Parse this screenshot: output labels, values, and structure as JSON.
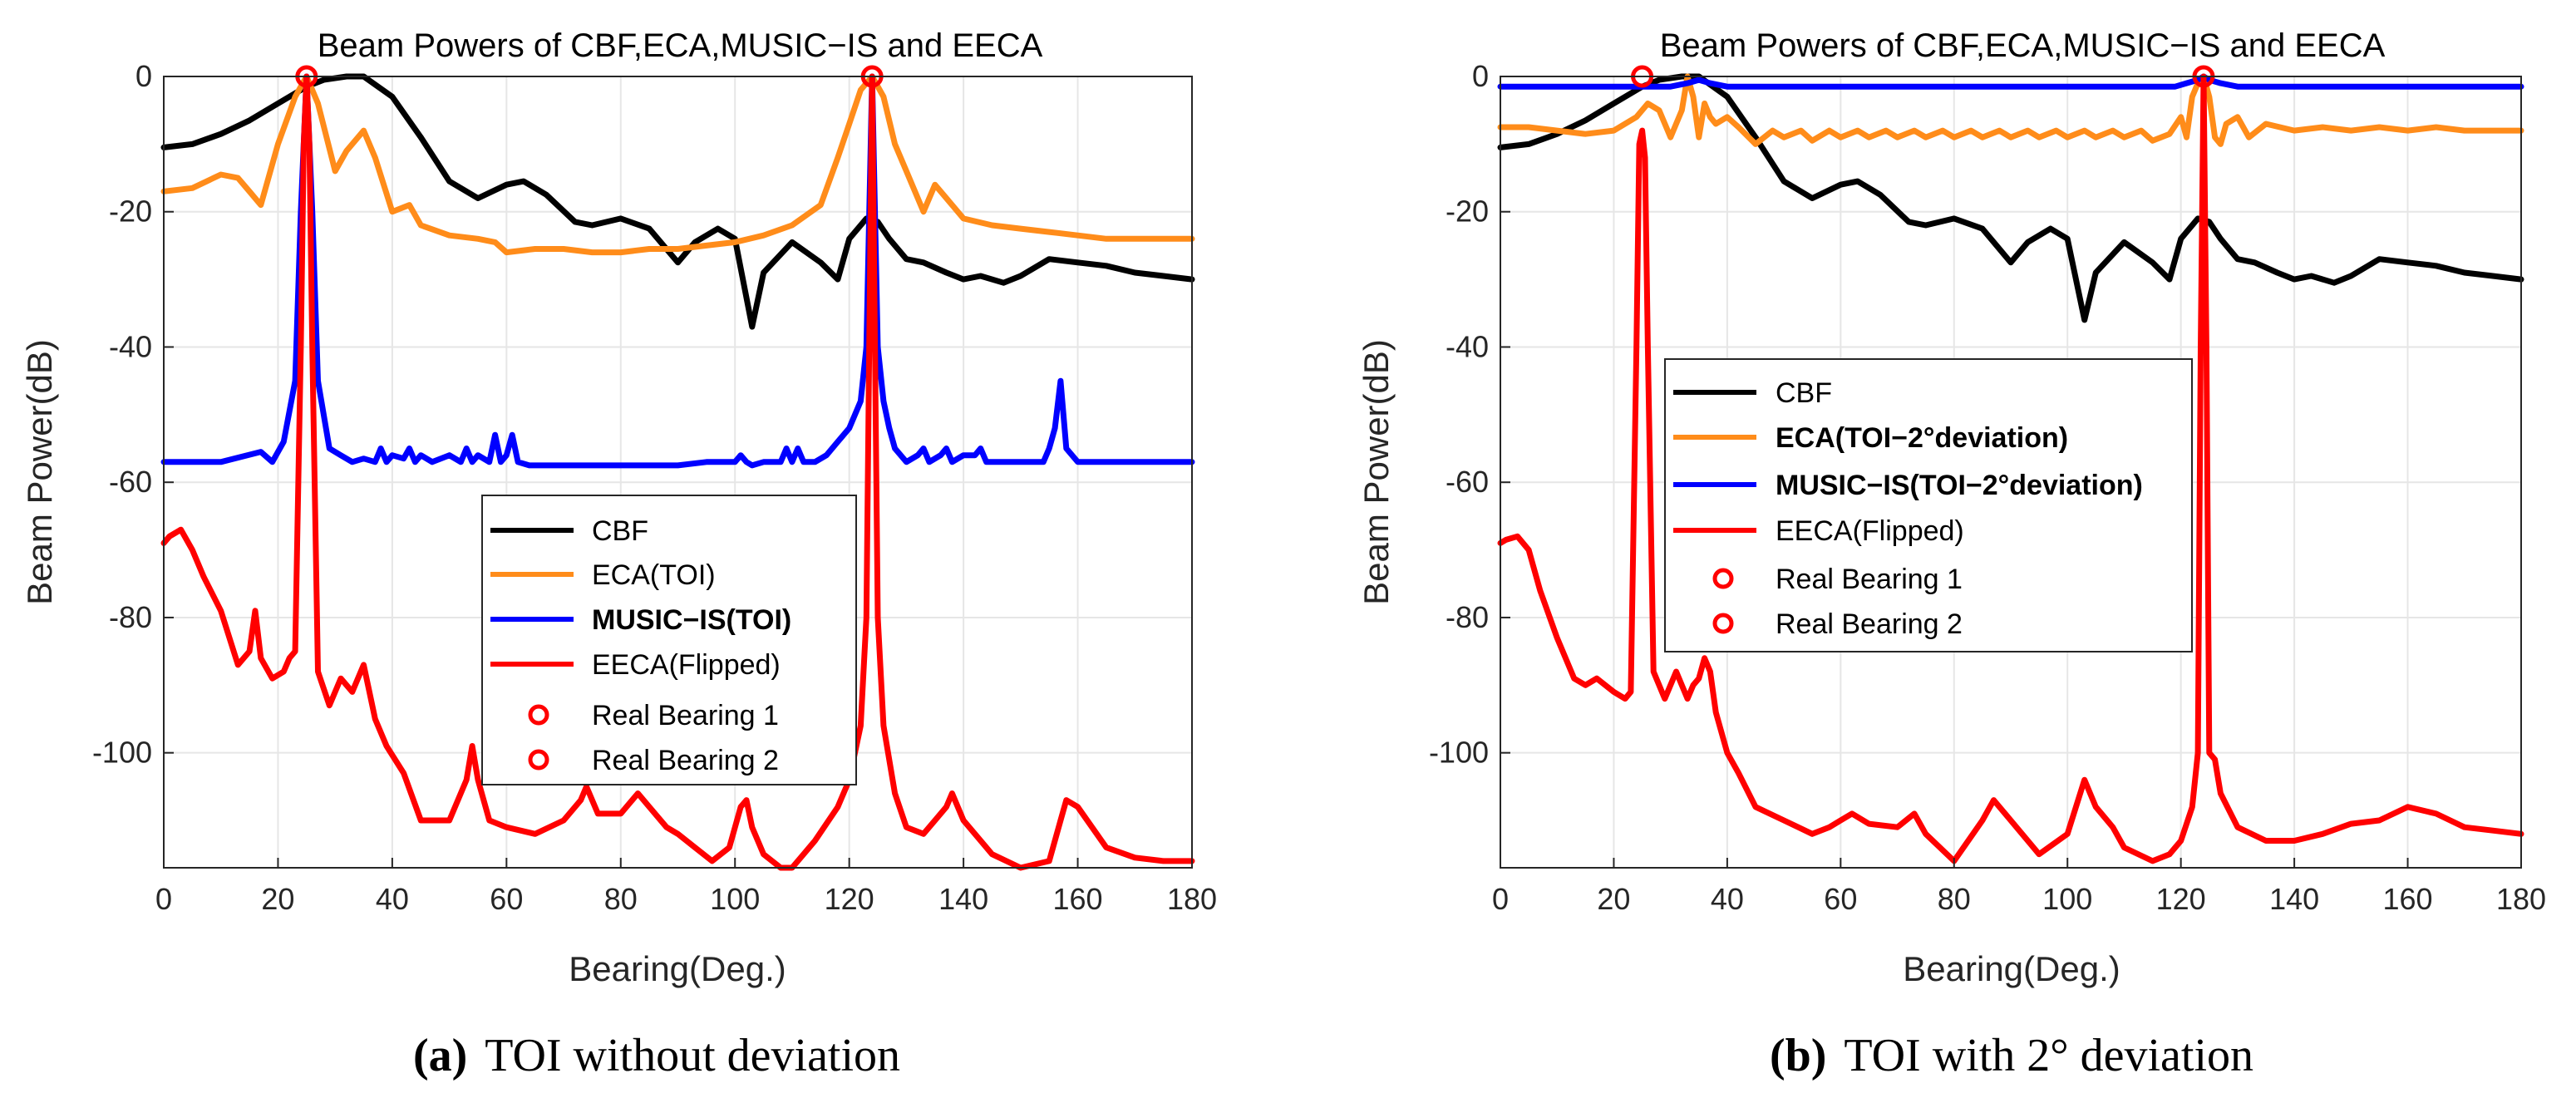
{
  "colors": {
    "cbf": "#000000",
    "eca": "#ff8c1a",
    "music": "#0000ff",
    "eeca": "#ff0000",
    "marker": "#ff0000",
    "grid": "#e6e6e6",
    "axis": "#262626"
  },
  "captions": [
    {
      "label": "(a)",
      "text": "TOI without deviation"
    },
    {
      "label": "(b)",
      "text": "TOI with 2° deviation"
    }
  ],
  "chart_data": [
    {
      "type": "line",
      "title": "Beam Powers of CBF,ECA,MUSIC−IS and EECA",
      "xlabel": "Bearing(Deg.)",
      "ylabel": "Beam Power(dB)",
      "xlim": [
        0,
        180
      ],
      "ylim": [
        -117,
        0
      ],
      "xticks": [
        "0",
        "20",
        "40",
        "60",
        "80",
        "100",
        "120",
        "140",
        "160",
        "180"
      ],
      "yticks": [
        "0",
        "-20",
        "-40",
        "-60",
        "-80",
        "-100"
      ],
      "grid": true,
      "legend_position": "center",
      "legend": [
        "CBF",
        "ECA(TOI)",
        "MUSIC−IS(TOI)",
        "EECA(Flipped)",
        "Real Bearing 1",
        "Real Bearing 2"
      ],
      "series": [
        {
          "name": "CBF",
          "x": [
            0,
            5,
            10,
            15,
            20,
            25,
            28,
            32,
            35,
            40,
            45,
            50,
            55,
            60,
            63,
            67,
            72,
            75,
            80,
            85,
            90,
            93,
            97,
            100,
            103,
            105,
            110,
            115,
            118,
            120,
            123,
            125,
            127,
            130,
            133,
            137,
            140,
            143,
            147,
            150,
            155,
            160,
            165,
            170,
            175,
            180
          ],
          "y": [
            -10.5,
            -10,
            -8.5,
            -6.5,
            -4,
            -1.5,
            -0.5,
            0,
            0,
            -3,
            -9,
            -15.5,
            -18,
            -16,
            -15.5,
            -17.5,
            -21.5,
            -22,
            -21,
            -22.5,
            -27.5,
            -24.5,
            -22.5,
            -24,
            -37,
            -29,
            -24.5,
            -27.5,
            -30,
            -24,
            -21,
            -21.5,
            -24,
            -27,
            -27.5,
            -29,
            -30,
            -29.5,
            -30.5,
            -29.5,
            -27,
            -27.5,
            -28,
            -29,
            -29.5,
            -30
          ]
        },
        {
          "name": "ECA(TOI)",
          "x": [
            0,
            5,
            10,
            13,
            15,
            17,
            20,
            23,
            25,
            27,
            30,
            32,
            35,
            37,
            40,
            43,
            45,
            50,
            55,
            58,
            60,
            65,
            70,
            75,
            80,
            85,
            90,
            95,
            100,
            105,
            110,
            115,
            118,
            120,
            122,
            124,
            126,
            128,
            130,
            133,
            135,
            138,
            140,
            145,
            150,
            155,
            160,
            165,
            170,
            175,
            180
          ],
          "y": [
            -17,
            -16.5,
            -14.5,
            -15,
            -17,
            -19,
            -10,
            -3,
            0,
            -4,
            -14,
            -11,
            -8,
            -12,
            -20,
            -19,
            -22,
            -23.5,
            -24,
            -24.5,
            -26,
            -25.5,
            -25.5,
            -26,
            -26,
            -25.5,
            -25.5,
            -25,
            -24.5,
            -23.5,
            -22,
            -19,
            -12,
            -7,
            -2,
            0,
            -3,
            -10,
            -14,
            -20,
            -16,
            -19,
            -21,
            -22,
            -22.5,
            -23,
            -23.5,
            -24,
            -24,
            -24,
            -24
          ]
        },
        {
          "name": "MUSIC−IS(TOI)",
          "x": [
            0,
            10,
            17,
            19,
            21,
            23,
            24,
            25,
            26,
            27,
            29,
            31,
            33,
            35,
            37,
            38,
            39,
            40,
            42,
            43,
            44,
            45,
            47,
            50,
            52,
            53,
            54,
            55,
            57,
            58,
            59,
            60,
            61,
            62,
            64,
            66,
            70,
            80,
            90,
            95,
            100,
            101,
            102,
            103,
            105,
            108,
            109,
            110,
            111,
            112,
            114,
            116,
            118,
            120,
            122,
            123,
            124,
            125,
            126,
            127,
            128,
            130,
            132,
            133,
            134,
            136,
            137,
            138,
            140,
            142,
            143,
            144,
            146,
            150,
            154,
            155,
            156,
            157,
            158,
            160,
            170,
            180
          ],
          "y": [
            -57,
            -57,
            -55.5,
            -57,
            -54,
            -45,
            -20,
            0,
            -20,
            -45,
            -55,
            -56,
            -57,
            -56.5,
            -57,
            -55,
            -57,
            -56,
            -56.5,
            -55,
            -57,
            -56,
            -57,
            -56,
            -57,
            -55,
            -57,
            -56,
            -57,
            -53,
            -57,
            -56,
            -53,
            -57,
            -57.5,
            -57.5,
            -57.5,
            -57.5,
            -57.5,
            -57,
            -57,
            -56,
            -57,
            -57.5,
            -57,
            -57,
            -55,
            -57,
            -55,
            -57,
            -57,
            -56,
            -54,
            -52,
            -48,
            -40,
            0,
            -40,
            -48,
            -52,
            -55,
            -57,
            -56,
            -55,
            -57,
            -56,
            -55,
            -57,
            -56,
            -56,
            -55,
            -57,
            -57,
            -57,
            -57,
            -55,
            -52,
            -45,
            -55,
            -57,
            -57,
            -57
          ]
        },
        {
          "name": "EECA(Flipped)",
          "x": [
            0,
            1,
            3,
            5,
            7,
            10,
            13,
            15,
            16,
            17,
            19,
            21,
            22,
            23,
            24,
            24.5,
            25,
            25.5,
            26,
            27,
            29,
            31,
            33,
            35,
            36,
            37,
            39,
            42,
            45,
            50,
            53,
            54,
            55,
            57,
            60,
            65,
            70,
            73,
            74,
            76,
            80,
            83,
            85,
            88,
            90,
            93,
            96,
            99,
            101,
            102,
            103,
            105,
            108,
            110,
            112,
            114,
            118,
            120,
            122,
            123,
            123.5,
            124,
            124.5,
            125,
            126,
            128,
            130,
            133,
            135,
            137,
            138,
            140,
            145,
            150,
            155,
            157,
            158,
            160,
            165,
            170,
            175,
            180
          ],
          "y": [
            -69,
            -68,
            -67,
            -70,
            -74,
            -79,
            -87,
            -85,
            -79,
            -86,
            -89,
            -88,
            -86,
            -85,
            -40,
            -10,
            0,
            -10,
            -40,
            -88,
            -93,
            -89,
            -91,
            -87,
            -91,
            -95,
            -99,
            -103,
            -110,
            -110,
            -104,
            -99,
            -104,
            -110,
            -111,
            -112,
            -110,
            -107,
            -105,
            -109,
            -109,
            -106,
            -108,
            -111,
            -112,
            -114,
            -116,
            -114,
            -108,
            -107,
            -111,
            -115,
            -117,
            -117,
            -115,
            -113,
            -108,
            -104,
            -96,
            -80,
            -40,
            0,
            -40,
            -80,
            -96,
            -106,
            -111,
            -112,
            -110,
            -108,
            -106,
            -110,
            -115,
            -117,
            -116,
            -110,
            -107,
            -108,
            -114,
            -115.5,
            -116,
            -116
          ]
        }
      ],
      "markers": [
        {
          "name": "Real Bearing 1",
          "x": 25,
          "y": 0
        },
        {
          "name": "Real Bearing 2",
          "x": 124,
          "y": 0
        }
      ]
    },
    {
      "type": "line",
      "title": "Beam Powers of CBF,ECA,MUSIC−IS and EECA",
      "xlabel": "Bearing(Deg.)",
      "ylabel": "Beam Power(dB)",
      "xlim": [
        0,
        180
      ],
      "ylim": [
        -117,
        0
      ],
      "xticks": [
        "0",
        "20",
        "40",
        "60",
        "80",
        "100",
        "120",
        "140",
        "160",
        "180"
      ],
      "yticks": [
        "0",
        "-20",
        "-40",
        "-60",
        "-80",
        "-100"
      ],
      "grid": true,
      "legend_position": "upper-left",
      "legend": [
        "CBF",
        "ECA(TOI−2°deviation)",
        "MUSIC−IS(TOI−2°deviation)",
        "EECA(Flipped)",
        "Real Bearing 1",
        "Real Bearing 2"
      ],
      "series": [
        {
          "name": "CBF",
          "x": [
            0,
            5,
            10,
            15,
            20,
            25,
            28,
            32,
            35,
            40,
            45,
            50,
            55,
            60,
            63,
            67,
            72,
            75,
            80,
            85,
            90,
            93,
            97,
            100,
            103,
            105,
            110,
            115,
            118,
            120,
            123,
            125,
            127,
            130,
            133,
            137,
            140,
            143,
            147,
            150,
            155,
            160,
            165,
            170,
            175,
            180
          ],
          "y": [
            -10.5,
            -10,
            -8.5,
            -6.5,
            -4,
            -1.5,
            -0.5,
            0,
            0,
            -3,
            -9,
            -15.5,
            -18,
            -16,
            -15.5,
            -17.5,
            -21.5,
            -22,
            -21,
            -22.5,
            -27.5,
            -24.5,
            -22.5,
            -24,
            -36,
            -29,
            -24.5,
            -27.5,
            -30,
            -24,
            -21,
            -21.5,
            -24,
            -27,
            -27.5,
            -29,
            -30,
            -29.5,
            -30.5,
            -29.5,
            -27,
            -27.5,
            -28,
            -29,
            -29.5,
            -30
          ]
        },
        {
          "name": "ECA(TOI−2°deviation)",
          "x": [
            0,
            5,
            10,
            15,
            20,
            24,
            26,
            28,
            30,
            32,
            33,
            34,
            35,
            36,
            37,
            38,
            40,
            42,
            45,
            48,
            50,
            53,
            55,
            58,
            60,
            63,
            65,
            68,
            70,
            73,
            75,
            78,
            80,
            83,
            85,
            88,
            90,
            93,
            95,
            98,
            100,
            103,
            105,
            108,
            110,
            113,
            115,
            118,
            120,
            121,
            122,
            123,
            124,
            125,
            126,
            127,
            128,
            130,
            132,
            135,
            140,
            145,
            150,
            155,
            160,
            165,
            170,
            175,
            180
          ],
          "y": [
            -7.5,
            -7.5,
            -8,
            -8.5,
            -8,
            -6,
            -4,
            -5,
            -9,
            -5,
            0,
            -3,
            -9,
            -4,
            -6,
            -7,
            -6,
            -7.5,
            -10,
            -8,
            -9,
            -8,
            -9.5,
            -8,
            -9,
            -8,
            -9,
            -8,
            -9,
            -8,
            -9,
            -8,
            -9,
            -8,
            -9,
            -8,
            -9,
            -8,
            -9,
            -8,
            -9,
            -8,
            -9,
            -8,
            -9,
            -8,
            -9.5,
            -8.5,
            -6,
            -9,
            -3,
            -1,
            0,
            -3,
            -9,
            -10,
            -7,
            -6,
            -9,
            -7,
            -8,
            -7.5,
            -8,
            -7.5,
            -8,
            -7.5,
            -8,
            -8,
            -8
          ]
        },
        {
          "name": "MUSIC−IS(TOI−2°deviation)",
          "x": [
            0,
            20,
            30,
            33,
            35,
            37,
            40,
            60,
            100,
            119,
            121,
            123,
            124,
            125,
            127,
            130,
            150,
            180
          ],
          "y": [
            -1.5,
            -1.5,
            -1.5,
            -1,
            -0.5,
            -1,
            -1.5,
            -1.5,
            -1.5,
            -1.5,
            -1,
            -0.5,
            0,
            -0.5,
            -1,
            -1.5,
            -1.5,
            -1.5
          ]
        },
        {
          "name": "EECA(Flipped)",
          "x": [
            0,
            1,
            3,
            5,
            7,
            10,
            13,
            15,
            17,
            20,
            22,
            23,
            24,
            24.5,
            25,
            25.5,
            26,
            27,
            29,
            31,
            33,
            34,
            35,
            36,
            37,
            38,
            40,
            42,
            45,
            50,
            55,
            58,
            60,
            62,
            65,
            70,
            73,
            75,
            80,
            85,
            87,
            90,
            95,
            100,
            103,
            105,
            108,
            110,
            115,
            118,
            120,
            122,
            123,
            123.5,
            124,
            124.5,
            125,
            126,
            127,
            130,
            135,
            140,
            145,
            150,
            155,
            160,
            165,
            170,
            175,
            180
          ],
          "y": [
            -69,
            -68.5,
            -68,
            -70,
            -76,
            -83,
            -89,
            -90,
            -89,
            -91,
            -92,
            -91,
            -40,
            -10,
            -8,
            -12,
            -40,
            -88,
            -92,
            -88,
            -92,
            -90,
            -89,
            -86,
            -88,
            -94,
            -100,
            -103,
            -108,
            -110,
            -112,
            -111,
            -110,
            -109,
            -110.5,
            -111,
            -109,
            -112,
            -116,
            -110,
            -107,
            -110,
            -115,
            -112,
            -104,
            -108,
            -111,
            -114,
            -116,
            -115,
            -113,
            -108,
            -100,
            -40,
            0,
            -40,
            -100,
            -101,
            -106,
            -111,
            -113,
            -113,
            -112,
            -110.5,
            -110,
            -108,
            -109,
            -111,
            -111.5,
            -112
          ]
        }
      ],
      "markers": [
        {
          "name": "Real Bearing 1",
          "x": 25,
          "y": 0
        },
        {
          "name": "Real Bearing 2",
          "x": 124,
          "y": 0
        }
      ]
    }
  ]
}
